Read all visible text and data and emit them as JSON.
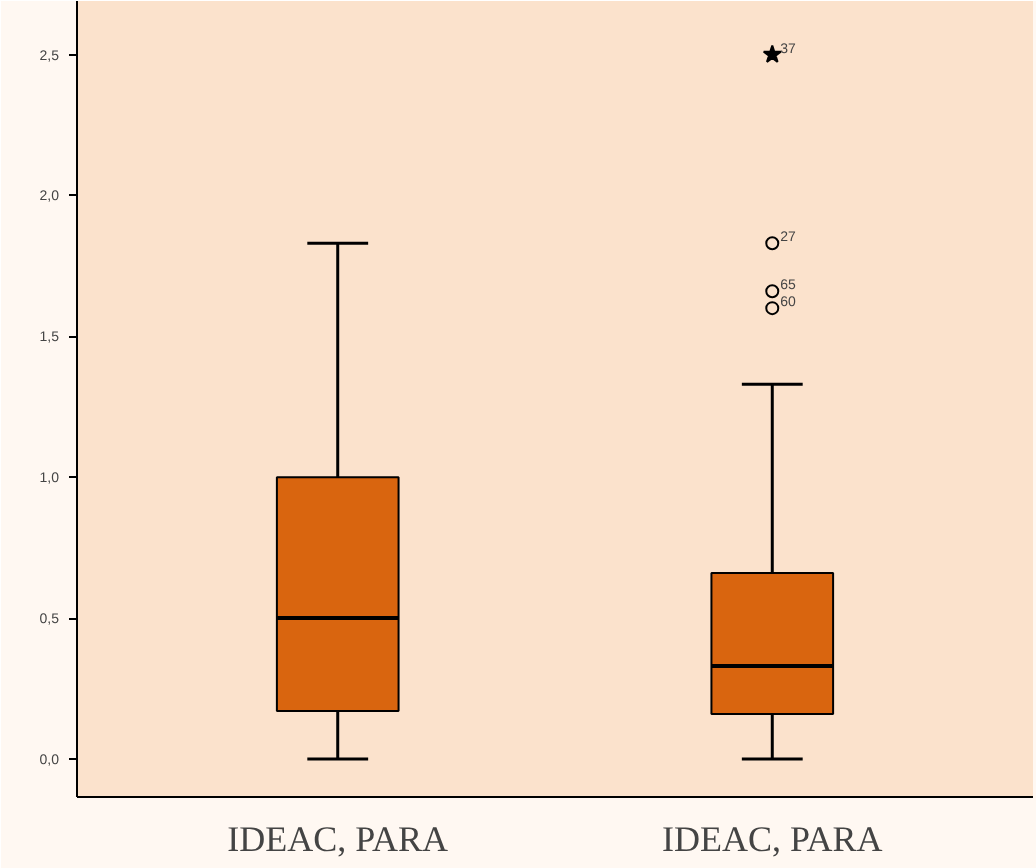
{
  "chart_data": {
    "type": "box",
    "categories": [
      "IDEAC, PARA",
      "IDEAC, PARA"
    ],
    "boxes": [
      {
        "low": 0,
        "q1": 0.17,
        "median": 0.5,
        "q3": 1.0,
        "high": 1.83
      },
      {
        "low": 0,
        "q1": 0.16,
        "median": 0.33,
        "q3": 0.66,
        "high": 1.33,
        "outliers": [
          1.83,
          1.66,
          1.6
        ]
      }
    ],
    "series": [
      {
        "type": "scatter",
        "marker": "star",
        "color": "#000000",
        "values": [
          null,
          2.5
        ]
      }
    ],
    "color": "#d9650f",
    "ylim": [
      -0.135,
      2.69
    ],
    "yticks": [
      {
        "value": 0,
        "label": "0,0"
      },
      {
        "value": 0.5,
        "label": "0,5"
      },
      {
        "value": 1,
        "label": "1,0"
      },
      {
        "value": 1.5,
        "label": "1,5"
      },
      {
        "value": 2,
        "label": "2,0"
      },
      {
        "value": 2.5,
        "label": "2,5"
      }
    ],
    "annotations": [
      "37",
      "27",
      "65",
      "60"
    ],
    "grid": false
  }
}
